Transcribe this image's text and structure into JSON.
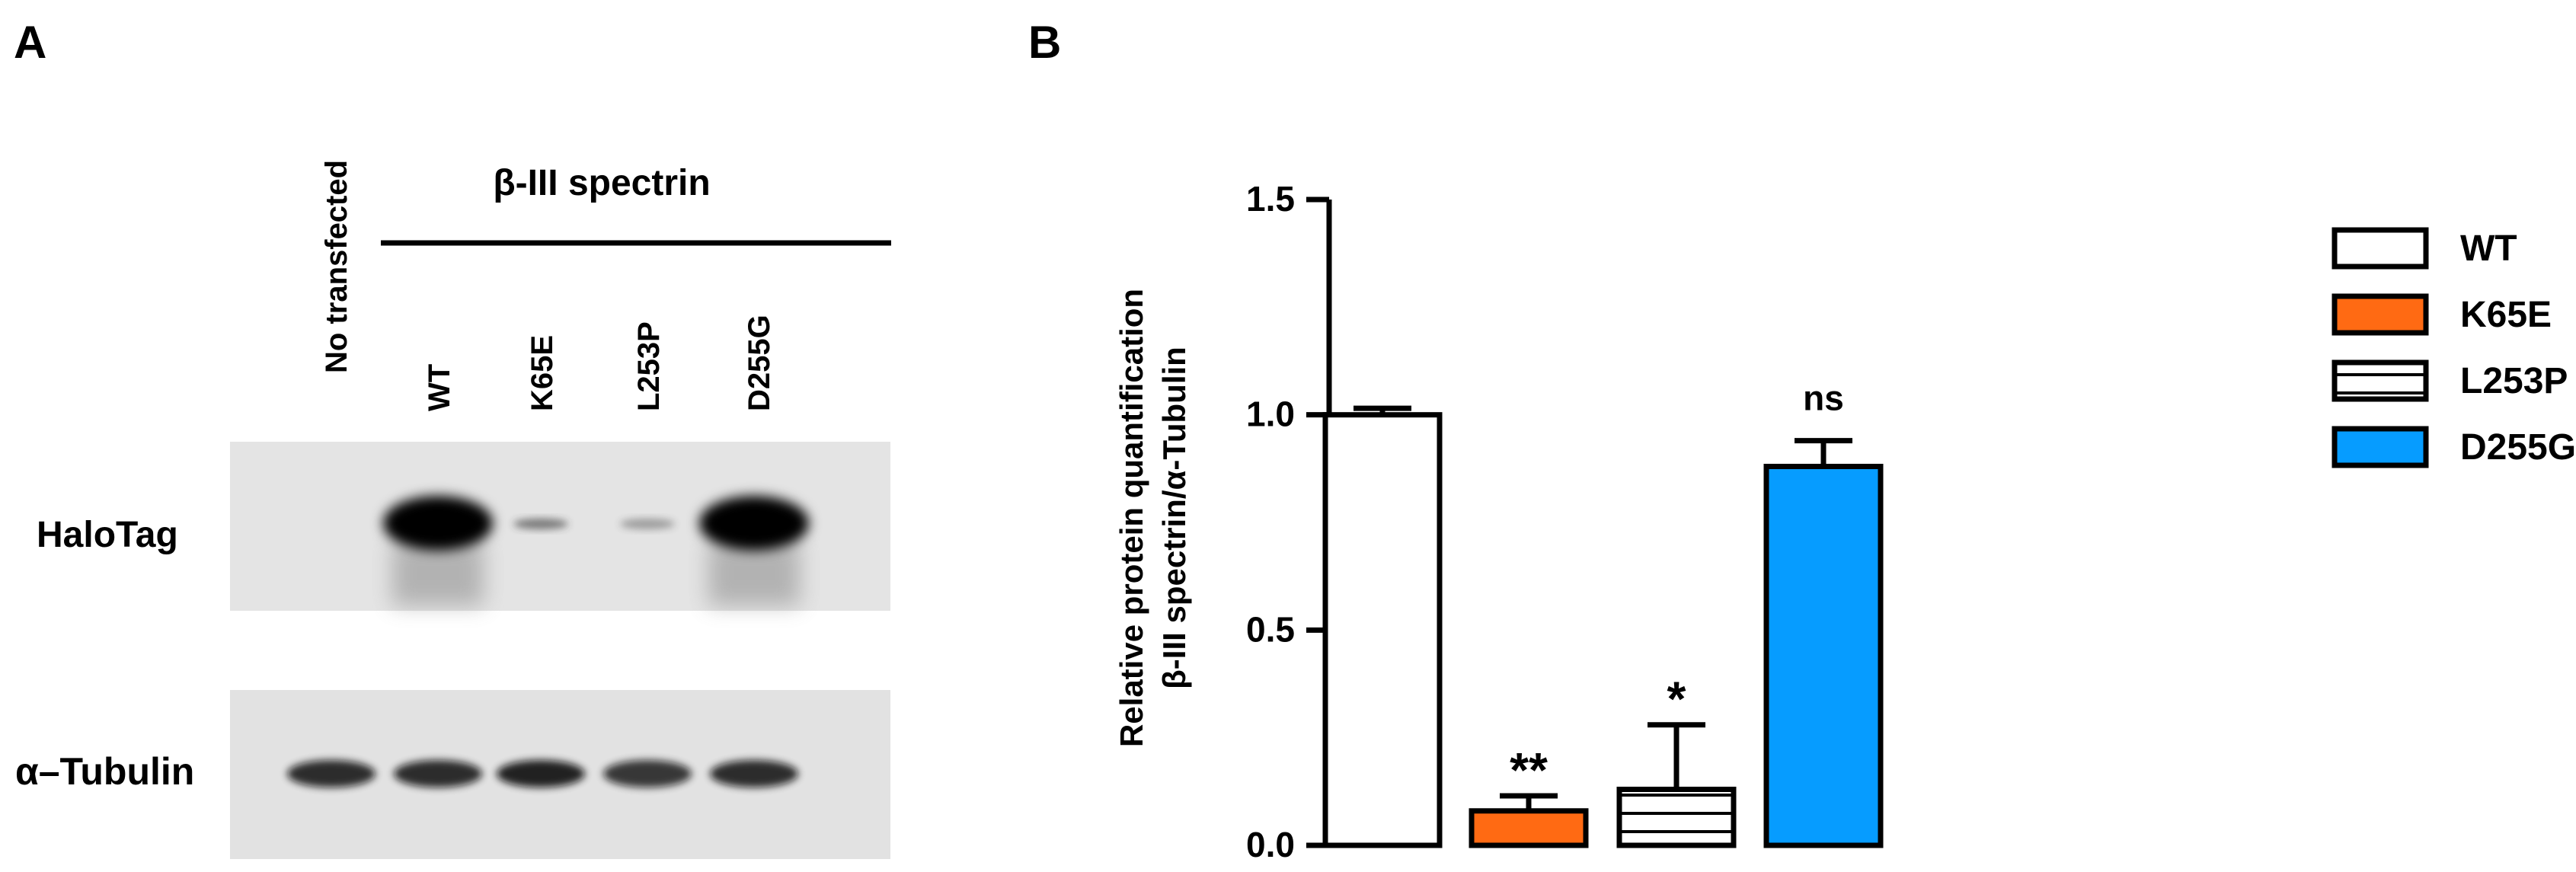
{
  "panels": {
    "a": {
      "letter": "A"
    },
    "b": {
      "letter": "B"
    }
  },
  "blot": {
    "lane_labels": [
      "No transfected",
      "WT",
      "K65E",
      "L253P",
      "D255G"
    ],
    "group_label": "β-III spectrin",
    "row_labels": {
      "halotag": "HaloTag",
      "tubulin": "α–Tubulin"
    },
    "halotag_intensity": [
      0.0,
      1.0,
      0.12,
      0.08,
      1.0
    ],
    "tubulin_intensity": [
      0.85,
      0.85,
      0.9,
      0.8,
      0.85
    ]
  },
  "chart_data": {
    "type": "bar",
    "categories": [
      "WT",
      "K65E",
      "L253P",
      "D255G"
    ],
    "values": [
      1.0,
      0.08,
      0.13,
      0.88
    ],
    "errors": [
      0.015,
      0.035,
      0.15,
      0.06
    ],
    "annotations": [
      "",
      "**",
      "*",
      "ns"
    ],
    "ylabel_line1": "Relative protein quantification",
    "ylabel_line2": "β-III spectrin/α-Tubulin",
    "xlabel": "",
    "ylim": [
      0,
      1.5
    ],
    "yticks": [
      "0.0",
      "0.5",
      "1.0",
      "1.5"
    ],
    "ytick_values": [
      0,
      0.5,
      1.0,
      1.5
    ],
    "legend": {
      "placement": "right",
      "entries": [
        {
          "name": "WT",
          "fill": "#ffffff",
          "pattern": "none"
        },
        {
          "name": "K65E",
          "fill": "#ff6a13",
          "pattern": "none"
        },
        {
          "name": "L253P",
          "fill": "#ffffff",
          "pattern": "horizontal-stripes"
        },
        {
          "name": "D255G",
          "fill": "#069cff",
          "pattern": "none"
        }
      ]
    },
    "colors": {
      "k65e": "#ff6a13",
      "d255g": "#069cff",
      "outline": "#000000"
    }
  }
}
